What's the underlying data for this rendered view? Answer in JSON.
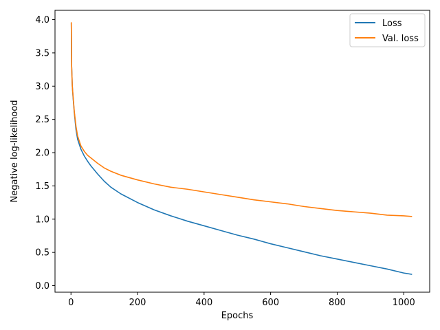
{
  "chart_data": {
    "type": "line",
    "title": "",
    "xlabel": "Epochs",
    "ylabel": "Negative log-likelihood",
    "xlim": [
      -48,
      1078
    ],
    "ylim": [
      -0.098,
      4.14
    ],
    "xticks": [
      0,
      200,
      400,
      600,
      800,
      1000
    ],
    "yticks": [
      0.0,
      0.5,
      1.0,
      1.5,
      2.0,
      2.5,
      3.0,
      3.5,
      4.0
    ],
    "grid": false,
    "legend_position": "top-right",
    "series": [
      {
        "name": "Loss",
        "color": "#1f77b4",
        "x": [
          1,
          2,
          4,
          6,
          10,
          15,
          20,
          30,
          40,
          50,
          60,
          80,
          100,
          120,
          150,
          200,
          250,
          300,
          350,
          400,
          450,
          500,
          550,
          600,
          650,
          700,
          750,
          800,
          850,
          900,
          950,
          1000,
          1025
        ],
        "y": [
          3.95,
          3.3,
          3.0,
          2.85,
          2.6,
          2.35,
          2.2,
          2.05,
          1.95,
          1.87,
          1.8,
          1.68,
          1.57,
          1.48,
          1.38,
          1.25,
          1.14,
          1.05,
          0.97,
          0.9,
          0.83,
          0.76,
          0.7,
          0.63,
          0.57,
          0.51,
          0.45,
          0.4,
          0.35,
          0.3,
          0.25,
          0.19,
          0.17
        ]
      },
      {
        "name": "Val. loss",
        "color": "#ff7f0e",
        "x": [
          1,
          2,
          4,
          6,
          10,
          15,
          20,
          30,
          40,
          50,
          60,
          80,
          100,
          120,
          150,
          200,
          250,
          300,
          350,
          400,
          450,
          500,
          550,
          600,
          650,
          700,
          750,
          800,
          850,
          900,
          950,
          1000,
          1025
        ],
        "y": [
          3.96,
          3.3,
          3.0,
          2.87,
          2.62,
          2.4,
          2.25,
          2.1,
          2.02,
          1.96,
          1.92,
          1.84,
          1.77,
          1.72,
          1.66,
          1.59,
          1.53,
          1.48,
          1.45,
          1.41,
          1.37,
          1.33,
          1.29,
          1.26,
          1.23,
          1.19,
          1.16,
          1.13,
          1.11,
          1.09,
          1.06,
          1.05,
          1.04
        ]
      }
    ]
  }
}
